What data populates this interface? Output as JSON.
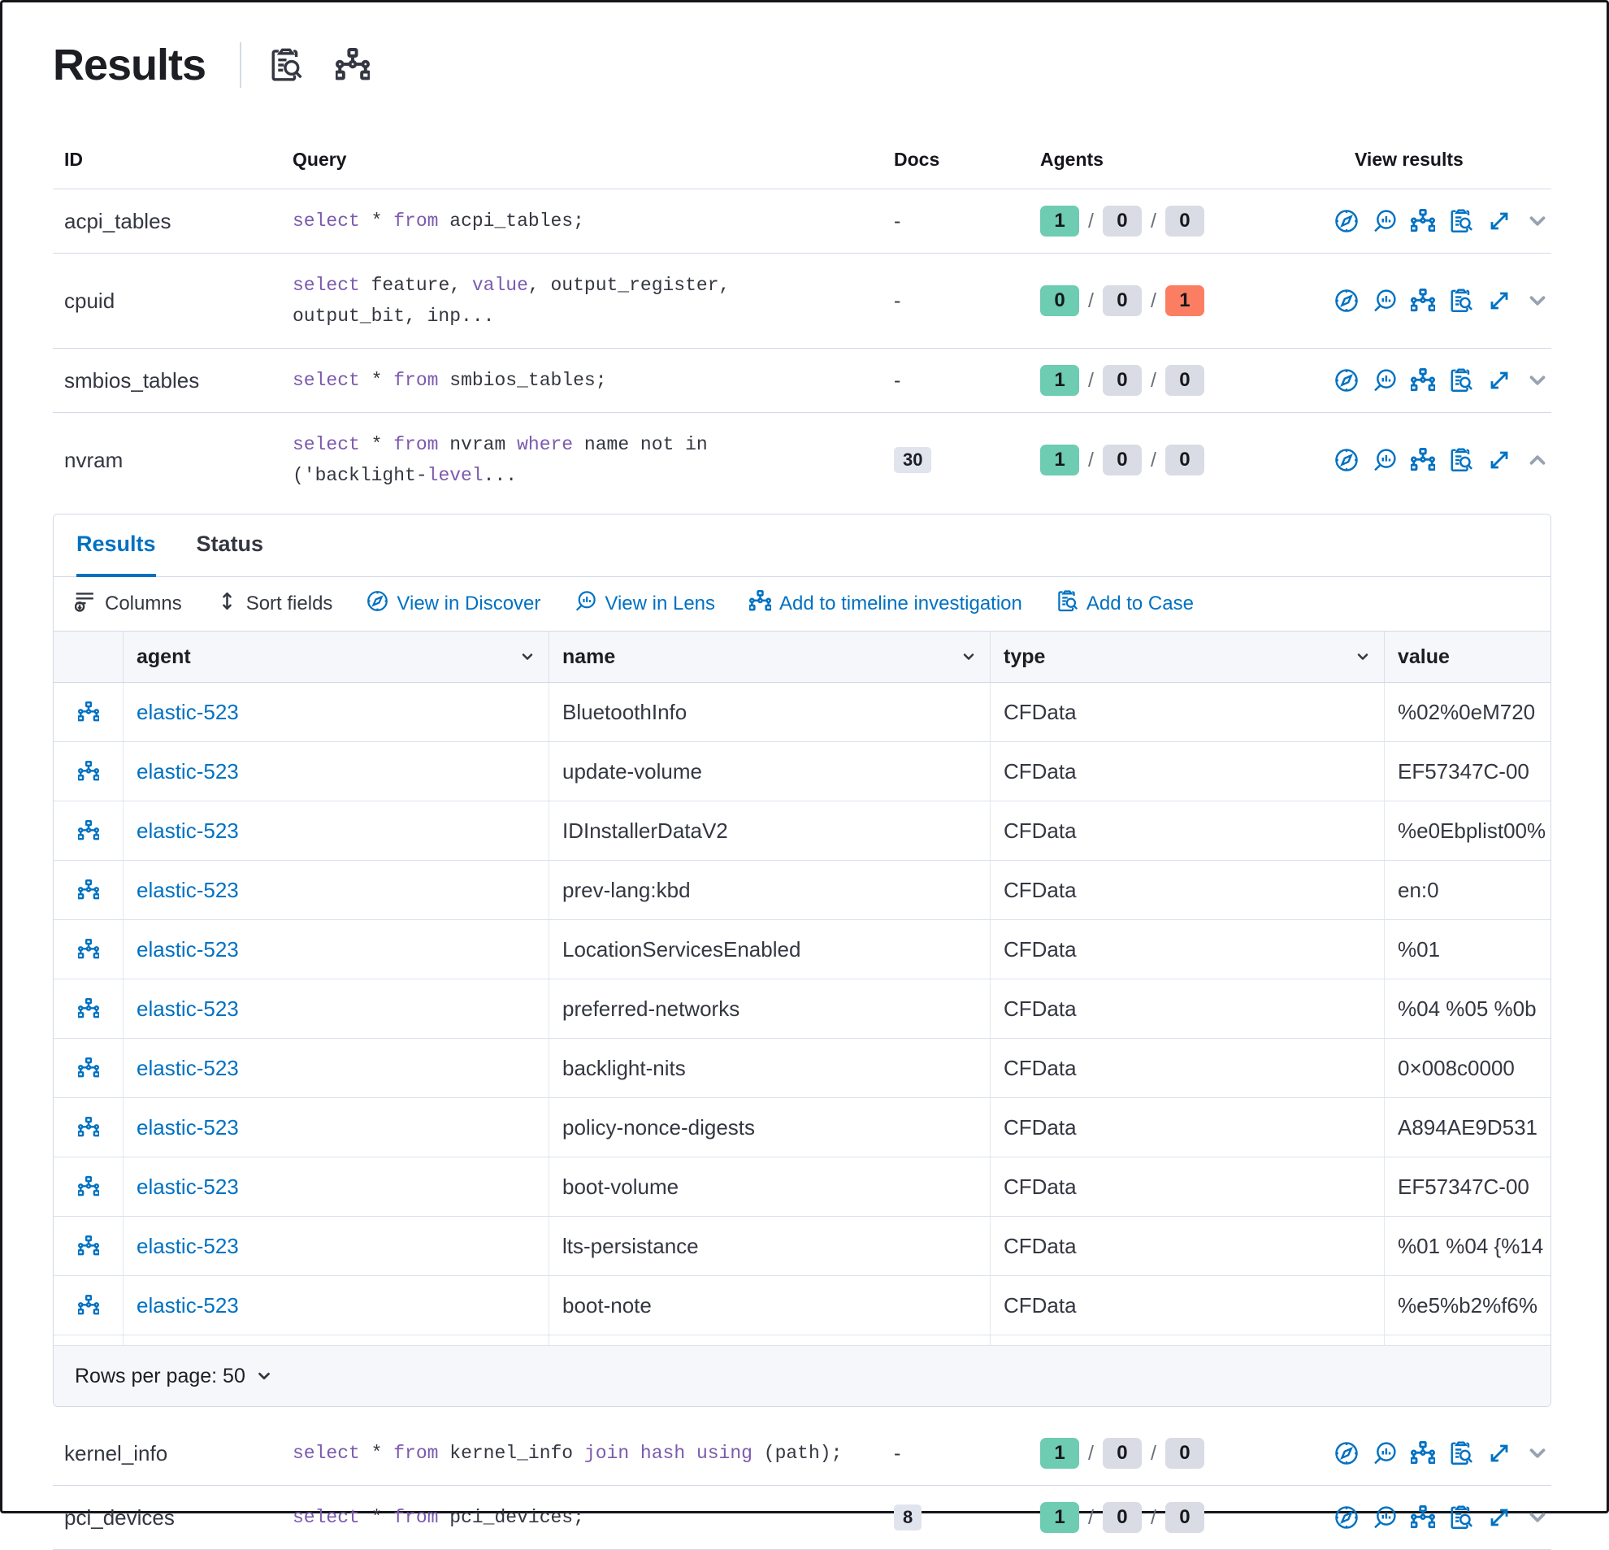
{
  "header": {
    "title": "Results"
  },
  "queries": {
    "columns": [
      "ID",
      "Query",
      "Docs",
      "Agents",
      "View results"
    ],
    "view_result_icon_names": [
      "view-in-discover",
      "view-in-lens",
      "add-to-timeline",
      "add-to-case",
      "expand"
    ],
    "rows_before_panel": [
      {
        "id": "acpi_tables",
        "query_lines": [
          [
            {
              "t": "select",
              "kw": true
            },
            {
              "t": " * "
            },
            {
              "t": "from",
              "kw": true
            },
            {
              "t": " acpi_tables;"
            }
          ]
        ],
        "docs": {
          "badge": false,
          "value": "-"
        },
        "agents": [
          {
            "value": "1",
            "state": "success"
          },
          {
            "value": "0",
            "state": "neutral"
          },
          {
            "value": "0",
            "state": "neutral"
          }
        ],
        "expanded": false
      },
      {
        "id": "cpuid",
        "query_lines": [
          [
            {
              "t": "select",
              "kw": true
            },
            {
              "t": " feature, "
            },
            {
              "t": "value",
              "kw": true
            },
            {
              "t": ", output_register,"
            }
          ],
          [
            {
              "t": "output_bit, inp..."
            }
          ]
        ],
        "docs": {
          "badge": false,
          "value": "-"
        },
        "agents": [
          {
            "value": "0",
            "state": "success"
          },
          {
            "value": "0",
            "state": "neutral"
          },
          {
            "value": "1",
            "state": "danger"
          }
        ],
        "expanded": false
      },
      {
        "id": "smbios_tables",
        "query_lines": [
          [
            {
              "t": "select",
              "kw": true
            },
            {
              "t": " * "
            },
            {
              "t": "from",
              "kw": true
            },
            {
              "t": " smbios_tables;"
            }
          ]
        ],
        "docs": {
          "badge": false,
          "value": "-"
        },
        "agents": [
          {
            "value": "1",
            "state": "success"
          },
          {
            "value": "0",
            "state": "neutral"
          },
          {
            "value": "0",
            "state": "neutral"
          }
        ],
        "expanded": false
      },
      {
        "id": "nvram",
        "query_lines": [
          [
            {
              "t": "select",
              "kw": true
            },
            {
              "t": " * "
            },
            {
              "t": "from",
              "kw": true
            },
            {
              "t": " nvram "
            },
            {
              "t": "where",
              "kw": true
            },
            {
              "t": " name not in"
            }
          ],
          [
            {
              "t": "('backlight-"
            },
            {
              "t": "level",
              "kw": true
            },
            {
              "t": "..."
            }
          ]
        ],
        "docs": {
          "badge": true,
          "value": "30"
        },
        "agents": [
          {
            "value": "1",
            "state": "success"
          },
          {
            "value": "0",
            "state": "neutral"
          },
          {
            "value": "0",
            "state": "neutral"
          }
        ],
        "expanded": true
      }
    ],
    "rows_after_panel": [
      {
        "id": "kernel_info",
        "query_lines": [
          [
            {
              "t": "select",
              "kw": true
            },
            {
              "t": " * "
            },
            {
              "t": "from",
              "kw": true
            },
            {
              "t": " kernel_info "
            },
            {
              "t": "join",
              "kw": true
            },
            {
              "t": " hash ",
              "kw": true
            },
            {
              "t": "using",
              "kw": true
            },
            {
              "t": " (path);"
            }
          ]
        ],
        "docs": {
          "badge": false,
          "value": "-"
        },
        "agents": [
          {
            "value": "1",
            "state": "success"
          },
          {
            "value": "0",
            "state": "neutral"
          },
          {
            "value": "0",
            "state": "neutral"
          }
        ],
        "expanded": false
      },
      {
        "id": "pci_devices",
        "query_lines": [
          [
            {
              "t": "select",
              "kw": true
            },
            {
              "t": " * "
            },
            {
              "t": "from",
              "kw": true
            },
            {
              "t": " pci_devices;"
            }
          ]
        ],
        "docs": {
          "badge": true,
          "value": "8"
        },
        "agents": [
          {
            "value": "1",
            "state": "success"
          },
          {
            "value": "0",
            "state": "neutral"
          },
          {
            "value": "0",
            "state": "neutral"
          }
        ],
        "expanded": false
      }
    ]
  },
  "panel": {
    "tabs": [
      {
        "label": "Results",
        "active": true
      },
      {
        "label": "Status",
        "active": false
      }
    ],
    "toolbar": [
      {
        "label": "Columns",
        "icon": "columns",
        "tone": "dark"
      },
      {
        "label": "Sort fields",
        "icon": "sort",
        "tone": "dark"
      },
      {
        "label": "View in Discover",
        "icon": "discover",
        "tone": "link"
      },
      {
        "label": "View in Lens",
        "icon": "lens",
        "tone": "link"
      },
      {
        "label": "Add to timeline investigation",
        "icon": "timeline",
        "tone": "link"
      },
      {
        "label": "Add to Case",
        "icon": "case",
        "tone": "link"
      }
    ],
    "grid": {
      "columns": [
        {
          "label": "",
          "sortable": false
        },
        {
          "label": "agent",
          "sortable": true
        },
        {
          "label": "name",
          "sortable": true
        },
        {
          "label": "type",
          "sortable": true
        },
        {
          "label": "value",
          "sortable": false
        }
      ],
      "rows": [
        {
          "agent": "elastic-523",
          "name": "BluetoothInfo",
          "type": "CFData",
          "value": "%02%0eM720"
        },
        {
          "agent": "elastic-523",
          "name": "update-volume",
          "type": "CFData",
          "value": "EF57347C-00"
        },
        {
          "agent": "elastic-523",
          "name": "IDInstallerDataV2",
          "type": "CFData",
          "value": "%e0Ebplist00%"
        },
        {
          "agent": "elastic-523",
          "name": "prev-lang:kbd",
          "type": "CFData",
          "value": "en:0"
        },
        {
          "agent": "elastic-523",
          "name": "LocationServicesEnabled",
          "type": "CFData",
          "value": "%01"
        },
        {
          "agent": "elastic-523",
          "name": "preferred-networks",
          "type": "CFData",
          "value": "%04 %05 %0b"
        },
        {
          "agent": "elastic-523",
          "name": "backlight-nits",
          "type": "CFData",
          "value": "0×008c0000"
        },
        {
          "agent": "elastic-523",
          "name": "policy-nonce-digests",
          "type": "CFData",
          "value": "A894AE9D531"
        },
        {
          "agent": "elastic-523",
          "name": "boot-volume",
          "type": "CFData",
          "value": "EF57347C-00"
        },
        {
          "agent": "elastic-523",
          "name": "lts-persistance",
          "type": "CFData",
          "value": "%01 %04 {%14"
        },
        {
          "agent": "elastic-523",
          "name": "boot-note",
          "type": "CFData",
          "value": "%e5%b2%f6%"
        }
      ],
      "footer": {
        "rows_per_page_label": "Rows per page: 50"
      }
    }
  },
  "colors": {
    "link_blue": "#0071c2",
    "keyword_purple": "#7c5aad",
    "badge_success": "#6dccb1",
    "badge_neutral": "#d9dce4",
    "badge_danger": "#fc7e62",
    "border": "#d3dae6"
  }
}
